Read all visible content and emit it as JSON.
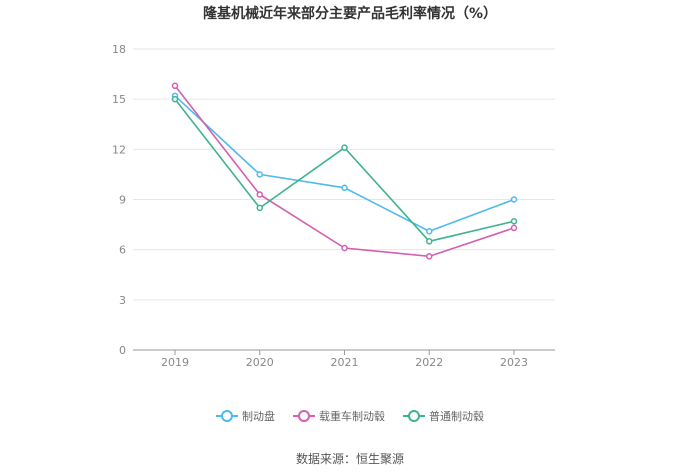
{
  "chart_data": {
    "type": "line",
    "title": "隆基机械近年来部分主要产品毛利率情况（%）",
    "categories": [
      "2019",
      "2020",
      "2021",
      "2022",
      "2023"
    ],
    "ylim": [
      0,
      18
    ],
    "yticks": [
      "0",
      "3",
      "6",
      "9",
      "12",
      "15",
      "18"
    ],
    "grid": true,
    "legend_position": "bottom",
    "series": [
      {
        "name": "制动盘",
        "color": "#4dbbeb",
        "values": [
          15.2,
          10.5,
          9.7,
          7.1,
          9.0
        ]
      },
      {
        "name": "载重车制动毂",
        "color": "#d45fb1",
        "values": [
          15.8,
          9.3,
          6.1,
          5.6,
          7.3
        ]
      },
      {
        "name": "普通制动毂",
        "color": "#3fb391",
        "values": [
          15.0,
          8.5,
          12.1,
          6.5,
          7.7
        ]
      }
    ]
  },
  "source": "数据来源：恒生聚源"
}
